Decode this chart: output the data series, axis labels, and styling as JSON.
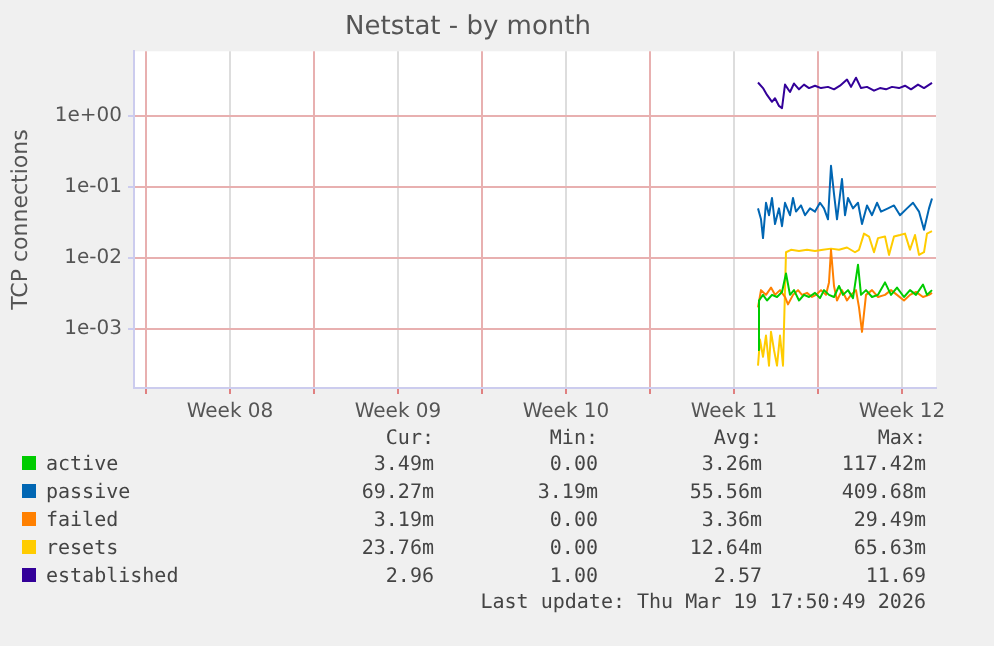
{
  "chart_data": {
    "type": "line",
    "title": "Netstat - by month",
    "ylabel": "TCP connections",
    "log": "y",
    "grid": true,
    "legend": "bottom",
    "marker": "none",
    "line_style": "solid",
    "xlim": [
      "2026-02-14T12:00",
      "2026-03-19T22:00"
    ],
    "xticks": [
      {
        "value": "2026-02-15",
        "label": null
      },
      {
        "value": "2026-02-18T12:00",
        "label": "Week 08"
      },
      {
        "value": "2026-02-22",
        "label": null
      },
      {
        "value": "2026-02-25T12:00",
        "label": "Week 09"
      },
      {
        "value": "2026-03-01",
        "label": null
      },
      {
        "value": "2026-03-04T12:00",
        "label": "Week 10"
      },
      {
        "value": "2026-03-08",
        "label": null
      },
      {
        "value": "2026-03-11T12:00",
        "label": "Week 11"
      },
      {
        "value": "2026-03-15",
        "label": null
      },
      {
        "value": "2026-03-18T12:00",
        "label": "Week 12"
      }
    ],
    "ylim": [
      0.000145,
      8.3
    ],
    "yticks": [
      {
        "value": 0.001,
        "label": "1e-03"
      },
      {
        "value": 0.01,
        "label": "1e-02"
      },
      {
        "value": 0.1,
        "label": "1e-01"
      },
      {
        "value": 1,
        "label": "1e+00"
      }
    ],
    "annotations": [
      "Cur:",
      "Min:",
      "Avg:",
      "Max:",
      "3.49m",
      "0.00",
      "3.26m",
      "117.42m",
      "69.27m",
      "3.19m",
      "55.56m",
      "409.68m",
      "3.19m",
      "0.00",
      "3.36m",
      "29.49m",
      "23.76m",
      "0.00",
      "12.64m",
      "65.63m",
      "2.96",
      "1.00",
      "2.57",
      "11.69",
      "Last update: Thu Mar 19 17:50:49 2026"
    ],
    "series": [
      {
        "name": "active",
        "color": "#00cc00",
        "x": [
          "2026-03-12T12:00",
          "2026-03-12T13:00",
          "2026-03-12T17:00",
          "2026-03-12T21:00",
          "2026-03-13T02:00",
          "2026-03-13T07:00",
          "2026-03-13T12:00",
          "2026-03-13T16:00",
          "2026-03-13T20:00",
          "2026-03-14T00:00",
          "2026-03-14T05:00",
          "2026-03-14T10:00",
          "2026-03-14T15:00",
          "2026-03-14T21:00",
          "2026-03-15T02:00",
          "2026-03-15T06:00",
          "2026-03-15T11:00",
          "2026-03-15T16:00",
          "2026-03-15T21:00",
          "2026-03-16T01:00",
          "2026-03-16T06:00",
          "2026-03-16T11:00",
          "2026-03-16T16:00",
          "2026-03-16T19:00",
          "2026-03-17T00:00",
          "2026-03-17T06:00",
          "2026-03-17T12:00",
          "2026-03-17T19:00",
          "2026-03-18T01:00",
          "2026-03-18T07:00",
          "2026-03-18T14:00",
          "2026-03-18T20:00",
          "2026-03-19T02:00",
          "2026-03-19T09:00",
          "2026-03-19T13:00",
          "2026-03-19T18:00"
        ],
        "values": [
          0.0005,
          0.0025,
          0.003,
          0.0025,
          0.003,
          0.0028,
          0.0033,
          0.006,
          0.003,
          0.0035,
          0.0025,
          0.003,
          0.0028,
          0.0032,
          0.0027,
          0.0035,
          0.003,
          0.0028,
          0.004,
          0.003,
          0.0035,
          0.0027,
          0.008,
          0.003,
          0.0035,
          0.0028,
          0.003,
          0.0045,
          0.003,
          0.0038,
          0.0028,
          0.0035,
          0.003,
          0.0042,
          0.003,
          0.0035
        ]
      },
      {
        "name": "passive",
        "color": "#0066b3",
        "x": [
          "2026-03-12T12:00",
          "2026-03-12T15:00",
          "2026-03-12T17:00",
          "2026-03-12T20:00",
          "2026-03-12T23:00",
          "2026-03-13T02:00",
          "2026-03-13T05:00",
          "2026-03-13T09:00",
          "2026-03-13T12:00",
          "2026-03-13T15:00",
          "2026-03-13T20:00",
          "2026-03-13T23:00",
          "2026-03-14T02:00",
          "2026-03-14T07:00",
          "2026-03-14T11:00",
          "2026-03-14T16:00",
          "2026-03-14T21:00",
          "2026-03-15T02:00",
          "2026-03-15T06:00",
          "2026-03-15T10:00",
          "2026-03-15T13:00",
          "2026-03-15T16:00",
          "2026-03-15T19:00",
          "2026-03-16T00:00",
          "2026-03-16T03:00",
          "2026-03-16T06:00",
          "2026-03-16T11:00",
          "2026-03-16T16:00",
          "2026-03-16T20:00",
          "2026-03-17T01:00",
          "2026-03-17T06:00",
          "2026-03-17T11:00",
          "2026-03-17T15:00",
          "2026-03-17T22:00",
          "2026-03-18T04:00",
          "2026-03-18T10:00",
          "2026-03-18T17:00",
          "2026-03-18T23:00",
          "2026-03-19T05:00",
          "2026-03-19T10:00",
          "2026-03-19T15:00",
          "2026-03-19T18:00"
        ],
        "values": [
          0.05,
          0.035,
          0.019,
          0.06,
          0.04,
          0.07,
          0.03,
          0.05,
          0.028,
          0.06,
          0.04,
          0.07,
          0.045,
          0.055,
          0.04,
          0.05,
          0.045,
          0.06,
          0.05,
          0.035,
          0.2,
          0.08,
          0.035,
          0.13,
          0.04,
          0.07,
          0.05,
          0.06,
          0.03,
          0.055,
          0.04,
          0.06,
          0.045,
          0.05,
          0.055,
          0.04,
          0.05,
          0.06,
          0.045,
          0.025,
          0.05,
          0.069
        ]
      },
      {
        "name": "failed",
        "color": "#ff8000",
        "x": [
          "2026-03-12T12:00",
          "2026-03-12T15:00",
          "2026-03-12T20:00",
          "2026-03-13T01:00",
          "2026-03-13T05:00",
          "2026-03-13T10:00",
          "2026-03-13T15:00",
          "2026-03-13T18:00",
          "2026-03-13T23:00",
          "2026-03-14T04:00",
          "2026-03-14T08:00",
          "2026-03-14T13:00",
          "2026-03-14T18:00",
          "2026-03-14T22:00",
          "2026-03-15T03:00",
          "2026-03-15T08:00",
          "2026-03-15T11:00",
          "2026-03-15T13:00",
          "2026-03-15T16:00",
          "2026-03-15T19:00",
          "2026-03-16T00:00",
          "2026-03-16T05:00",
          "2026-03-16T09:00",
          "2026-03-16T14:00",
          "2026-03-16T17:00",
          "2026-03-16T20:00",
          "2026-03-17T00:00",
          "2026-03-17T06:00",
          "2026-03-17T12:00",
          "2026-03-17T19:00",
          "2026-03-18T01:00",
          "2026-03-18T07:00",
          "2026-03-18T14:00",
          "2026-03-18T20:00",
          "2026-03-19T02:00",
          "2026-03-19T09:00",
          "2026-03-19T15:00",
          "2026-03-19T18:00"
        ],
        "values": [
          0.002,
          0.0035,
          0.003,
          0.0038,
          0.003,
          0.0035,
          0.0028,
          0.0022,
          0.003,
          0.0035,
          0.003,
          0.0032,
          0.0028,
          0.003,
          0.0035,
          0.003,
          0.0045,
          0.013,
          0.004,
          0.0025,
          0.0035,
          0.0025,
          0.003,
          0.0035,
          0.002,
          0.0009,
          0.003,
          0.0035,
          0.0028,
          0.003,
          0.0035,
          0.003,
          0.0025,
          0.003,
          0.0033,
          0.0028,
          0.003,
          0.0032
        ]
      },
      {
        "name": "resets",
        "color": "#ffcc00",
        "x": [
          "2026-03-12T12:00",
          "2026-03-12T14:00",
          "2026-03-12T17:00",
          "2026-03-12T20:00",
          "2026-03-12T23:00",
          "2026-03-13T01:00",
          "2026-03-13T04:00",
          "2026-03-13T07:00",
          "2026-03-13T10:00",
          "2026-03-13T13:00",
          "2026-03-13T16:00",
          "2026-03-13T21:00",
          "2026-03-14T05:00",
          "2026-03-14T13:00",
          "2026-03-14T21:00",
          "2026-03-15T05:00",
          "2026-03-15T13:00",
          "2026-03-15T21:00",
          "2026-03-16T05:00",
          "2026-03-16T13:00",
          "2026-03-16T17:00",
          "2026-03-16T22:00",
          "2026-03-17T03:00",
          "2026-03-17T08:00",
          "2026-03-17T12:00",
          "2026-03-17T19:00",
          "2026-03-17T23:00",
          "2026-03-18T04:00",
          "2026-03-18T10:00",
          "2026-03-18T15:00",
          "2026-03-18T20:00",
          "2026-03-19T01:00",
          "2026-03-19T05:00",
          "2026-03-19T10:00",
          "2026-03-19T13:00",
          "2026-03-19T18:00"
        ],
        "values": [
          0.0003,
          0.0007,
          0.0004,
          0.0008,
          0.0003,
          0.0009,
          0.0005,
          0.0003,
          0.0008,
          0.0003,
          0.012,
          0.013,
          0.0125,
          0.013,
          0.0125,
          0.013,
          0.0135,
          0.013,
          0.014,
          0.012,
          0.013,
          0.022,
          0.02,
          0.012,
          0.019,
          0.02,
          0.011,
          0.02,
          0.021,
          0.022,
          0.013,
          0.021,
          0.011,
          0.012,
          0.022,
          0.0238
        ]
      },
      {
        "name": "established",
        "color": "#330099",
        "x": [
          "2026-03-12T12:00",
          "2026-03-12T17:00",
          "2026-03-12T21:00",
          "2026-03-13T02:00",
          "2026-03-13T05:00",
          "2026-03-13T09:00",
          "2026-03-13T12:00",
          "2026-03-13T15:00",
          "2026-03-13T20:00",
          "2026-03-14T00:00",
          "2026-03-14T05:00",
          "2026-03-14T10:00",
          "2026-03-14T15:00",
          "2026-03-14T21:00",
          "2026-03-15T03:00",
          "2026-03-15T10:00",
          "2026-03-15T16:00",
          "2026-03-15T22:00",
          "2026-03-16T05:00",
          "2026-03-16T09:00",
          "2026-03-16T14:00",
          "2026-03-16T19:00",
          "2026-03-17T01:00",
          "2026-03-17T08:00",
          "2026-03-17T14:00",
          "2026-03-17T20:00",
          "2026-03-18T02:00",
          "2026-03-18T09:00",
          "2026-03-18T15:00",
          "2026-03-18T21:00",
          "2026-03-19T04:00",
          "2026-03-19T10:00",
          "2026-03-19T18:00"
        ],
        "values": [
          3.0,
          2.5,
          2.0,
          1.6,
          1.8,
          1.4,
          1.3,
          2.8,
          2.2,
          2.9,
          2.4,
          2.8,
          2.5,
          2.7,
          2.5,
          2.6,
          2.4,
          2.7,
          3.3,
          2.6,
          3.5,
          2.5,
          2.6,
          2.3,
          2.5,
          2.4,
          2.6,
          2.5,
          2.7,
          2.4,
          2.8,
          2.5,
          2.96
        ]
      }
    ]
  }
}
